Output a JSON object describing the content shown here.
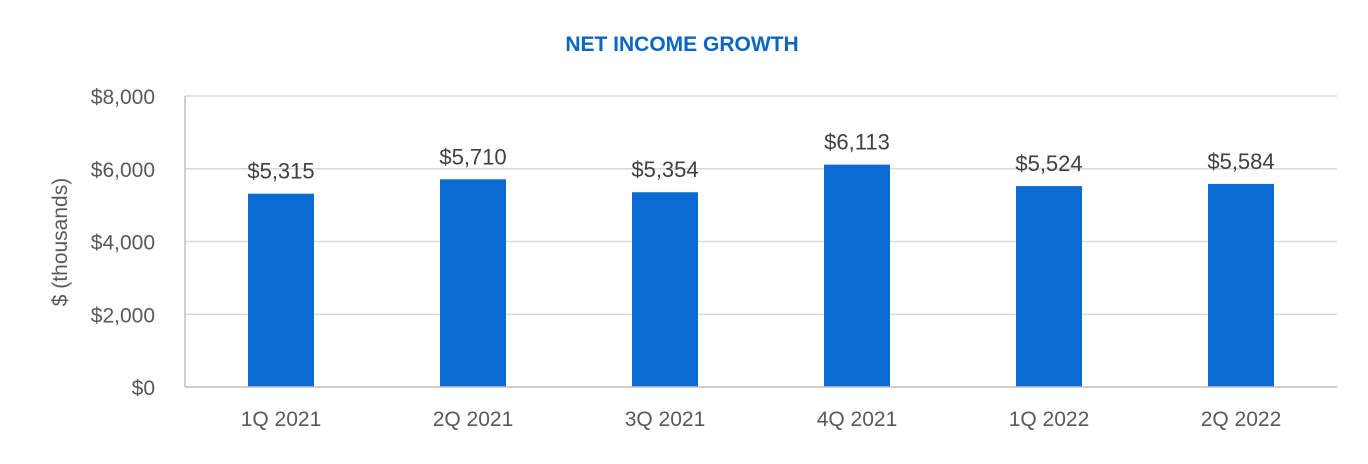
{
  "colors": {
    "title": "#0a66c2",
    "bar": "#0a6bd3",
    "gridline": "#d9d9d9",
    "axis": "#bfbfbf"
  },
  "chart_data": {
    "type": "bar",
    "title": "NET INCOME GROWTH",
    "xlabel": "",
    "ylabel": "$ (thousands)",
    "categories": [
      "1Q 2021",
      "2Q 2021",
      "3Q 2021",
      "4Q 2021",
      "1Q 2022",
      "2Q 2022"
    ],
    "series": [
      {
        "values": [
          5315,
          5710,
          5354,
          6113,
          5524,
          5584
        ],
        "data_labels": [
          "$5,315",
          "$5,710",
          "$5,354",
          "$6,113",
          "$5,524",
          "$5,584"
        ]
      }
    ],
    "ylim": [
      0,
      8000
    ],
    "y_ticks": [
      0,
      2000,
      4000,
      6000,
      8000
    ],
    "y_tick_labels": [
      "$0",
      "$2,000",
      "$4,000",
      "$6,000",
      "$8,000"
    ],
    "grid": true,
    "legend": "none"
  }
}
